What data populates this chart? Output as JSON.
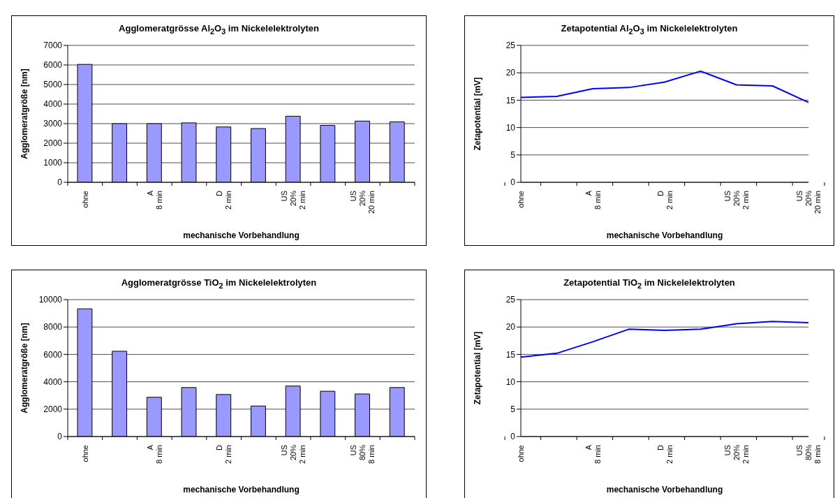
{
  "chart_data": [
    {
      "type": "bar",
      "title": "Agglomeratgrösse Al$_{2}$O$_{3}$ im Nickelelektrolyten",
      "xlabel": "mechanische Vorbehandlung",
      "ylabel": "Agglomeratgröße [nm]",
      "categories": [
        "ohne",
        null,
        "A\n8 min",
        null,
        "D\n2 min",
        null,
        "US\n20%\n2 min",
        null,
        "US\n20%\n20 min",
        null
      ],
      "values": [
        6030,
        3000,
        3000,
        3040,
        2830,
        2750,
        3380,
        2910,
        3130,
        3090
      ],
      "color": "#9999ff",
      "ylim": [
        0,
        7000
      ],
      "yticks": [
        0,
        1000,
        2000,
        3000,
        4000,
        5000,
        6000,
        7000
      ],
      "grid": "y"
    },
    {
      "type": "line",
      "title": "Zetapotential Al$_{2}$O$_{3}$ im Nickelelektrolyten",
      "xlabel": "mechanische Vorbehandlung",
      "ylabel": "Zetapotential [mV]",
      "categories": [
        "ohne",
        null,
        "A\n8 min",
        null,
        "D\n2 min",
        null,
        "US\n20%\n2 min",
        null,
        "US\n20%\n20 min"
      ],
      "values": [
        15.5,
        15.7,
        17.1,
        17.3,
        18.3,
        20.3,
        17.8,
        17.6,
        14.6
      ],
      "color": "#0000ff",
      "marker": "none",
      "ylim": [
        0,
        25
      ],
      "yticks": [
        0,
        5,
        10,
        15,
        20,
        25
      ],
      "grid": "y"
    },
    {
      "type": "bar",
      "title": "Agglomeratgrösse TiO$_{2}$ im Nickelelektrolyten",
      "xlabel": "mechanische Vorbehandlung",
      "ylabel": "Agglomeratgröße [nm]",
      "categories": [
        "ohne",
        null,
        "A\n8 min",
        null,
        "D\n2 min",
        null,
        "US\n20%\n2 min",
        null,
        "US\n80%\n8 min",
        null
      ],
      "values": [
        9330,
        6230,
        2870,
        3580,
        3070,
        2230,
        3690,
        3310,
        3110,
        3580
      ],
      "color": "#9999ff",
      "ylim": [
        0,
        10000
      ],
      "yticks": [
        0,
        2000,
        4000,
        6000,
        8000,
        10000
      ],
      "grid": "y"
    },
    {
      "type": "line",
      "title": "Zetapotential TiO$_{2}$ im Nickelelektrolyten",
      "xlabel": "mechanische Vorbehandlung",
      "ylabel": "Zetapotential [mV]",
      "categories": [
        "ohne",
        null,
        "A\n8 min",
        null,
        "D\n2 min",
        null,
        "US\n20%\n2 min",
        null,
        "US\n80%\n8 min"
      ],
      "values": [
        14.5,
        15.2,
        17.3,
        19.6,
        19.4,
        19.6,
        20.6,
        21.0,
        20.8
      ],
      "color": "#0000ff",
      "marker": "none",
      "ylim": [
        0,
        25
      ],
      "yticks": [
        0,
        5,
        10,
        15,
        20,
        25
      ],
      "grid": "y"
    }
  ]
}
